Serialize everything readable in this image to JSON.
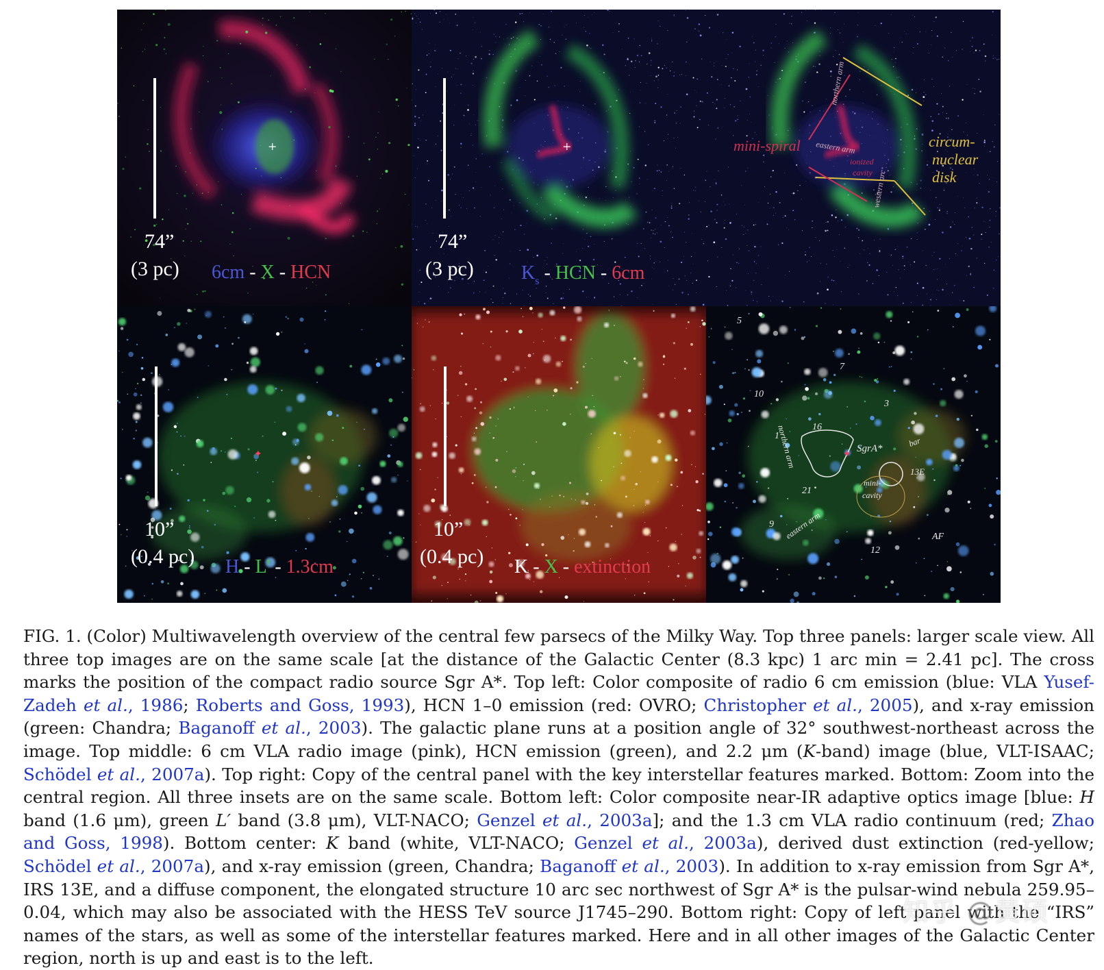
{
  "figure": {
    "panels": [
      {
        "id": "top-left",
        "scale_main": "74”",
        "scale_sub": "(3 pc)",
        "legend": [
          {
            "text": "6cm",
            "color": "#4a58d8"
          },
          {
            "text": " - ",
            "color": "#ffffff"
          },
          {
            "text": "X",
            "color": "#46c24a"
          },
          {
            "text": " - ",
            "color": "#ffffff"
          },
          {
            "text": "HCN",
            "color": "#e23a4e"
          }
        ]
      },
      {
        "id": "top-middle",
        "scale_main": "74”",
        "scale_sub": "(3 pc)",
        "legend": [
          {
            "text": "K",
            "color": "#4a58d8"
          },
          {
            "text": "s",
            "color": "#4a58d8"
          },
          {
            "text": " - ",
            "color": "#ffffff"
          },
          {
            "text": "HCN",
            "color": "#46c24a"
          },
          {
            "text": " - ",
            "color": "#ffffff"
          },
          {
            "text": "6cm",
            "color": "#e23a4e"
          }
        ]
      },
      {
        "id": "top-right",
        "annotations": {
          "mini_spiral": "mini-spiral",
          "circumnuclear_1": "circum-",
          "circumnuclear_2": "nuclear",
          "circumnuclear_3": "disk",
          "northern_arm": "northern arm",
          "eastern_arm": "eastern arm",
          "ionized_1": "ionized",
          "ionized_2": "cavity",
          "western_arc": "western arc"
        }
      },
      {
        "id": "bottom-left",
        "scale_main": "10”",
        "scale_sub": "(0.4 pc)",
        "legend": [
          {
            "text": "H",
            "color": "#4a58d8"
          },
          {
            "text": " - ",
            "color": "#ffffff"
          },
          {
            "text": "L’",
            "color": "#46c24a"
          },
          {
            "text": " - ",
            "color": "#ffffff"
          },
          {
            "text": "1.3cm",
            "color": "#e23a4e"
          }
        ]
      },
      {
        "id": "bottom-middle",
        "scale_main": "10”",
        "scale_sub": "(0.4 pc)",
        "legend": [
          {
            "text": "K",
            "color": "#ffffff"
          },
          {
            "text": " - ",
            "color": "#ffffff"
          },
          {
            "text": "X",
            "color": "#46c24a"
          },
          {
            "text": " - ",
            "color": "#ffffff"
          },
          {
            "text": "extinction",
            "color": "#e23a4e"
          }
        ]
      },
      {
        "id": "bottom-right",
        "labels": {
          "irs5": "5",
          "irs7": "7",
          "irs10": "10",
          "irs3": "3",
          "northern_arm": "northern arm",
          "irs16": "16",
          "irs1": "1",
          "sgra": "SgrA*",
          "bar": "bar",
          "irs13e": "13E",
          "mini_1": "mini-",
          "mini_2": "cavity",
          "irs21": "21",
          "irs9": "9",
          "eastern_arm": "eastern arm",
          "af": "AF",
          "irs12": "12"
        }
      }
    ]
  },
  "caption": {
    "s1": "FIG. 1. (Color) Multiwavelength overview of the central few parsecs of the Milky Way. Top three panels: larger scale view. All three top images are on the same scale [at the distance of the Galactic Center (8.3 kpc) 1 arc min = 2.41 pc]. The cross marks the position of the compact radio source Sgr A*. Top left: Color composite of radio 6 cm emission (blue: VLA ",
    "c1a": "Yusef-Zadeh ",
    "c1b": "et al.",
    "c1c": ", 1986",
    "s2": "; ",
    "c2": "Roberts and Goss, 1993",
    "s3": "), HCN 1–0 emission (red: OVRO; ",
    "c3a": "Christopher ",
    "c3b": "et al.",
    "c3c": ", 2005",
    "s4": "), and x-ray emission (green: Chandra; ",
    "c4a": "Baganoff ",
    "c4b": "et al.",
    "c4c": ", 2003",
    "s5": "). The galactic plane runs at a position angle of 32° southwest-northeast across the image. Top middle: 6 cm VLA radio image (pink), HCN emission (green), and 2.2 μm (",
    "s5k": "K",
    "s5b": "-band) image (blue, VLT-ISAAC; ",
    "c5a": "Schödel ",
    "c5b": "et al.",
    "c5c": ", 2007a",
    "s6": "). Top right: Copy of the central panel with the key interstellar features marked. Bottom: Zoom into the central region. All three insets are on the same scale. Bottom left: Color composite near-IR adaptive optics image [blue: ",
    "s6h": "H",
    "s6b": " band (1.6 μm), green ",
    "s6l": "L′",
    "s6c": " band (3.8 μm), VLT-NACO; ",
    "c6a": "Genzel ",
    "c6b": "et al.",
    "c6c": ", 2003a",
    "s7": "]; and the 1.3 cm VLA radio continuum (red; ",
    "c7": "Zhao and Goss, 1998",
    "s8": "). Bottom center: ",
    "s8k": "K",
    "s8b": " band (white, VLT-NACO; ",
    "c8a": "Genzel ",
    "c8b": "et al.",
    "c8c": ", 2003a",
    "s9": "), derived dust extinction (red-yellow; ",
    "c9a": "Schödel ",
    "c9b": "et al.",
    "c9c": ", 2007a",
    "s10": "), and x-ray emission (green, Chandra; ",
    "c10a": "Baganoff ",
    "c10b": "et al.",
    "c10c": ", 2003",
    "s11": "). In addition to x-ray emission from Sgr A*, IRS 13E, and a diffuse component, the elongated structure 10 arc sec northwest of Sgr A* is the pulsar-wind nebula 259.95–0.04, which may also be associated with the HESS TeV source J1745–290. Bottom right: Copy of left panel with the “IRS” names of the stars, as well as some of the interstellar features marked. Here and in all other images of the Galactic Center region, north is up and east is to the left."
  },
  "watermark": {
    "zh": "知乎",
    "at": "@",
    "name": "黄硕"
  }
}
